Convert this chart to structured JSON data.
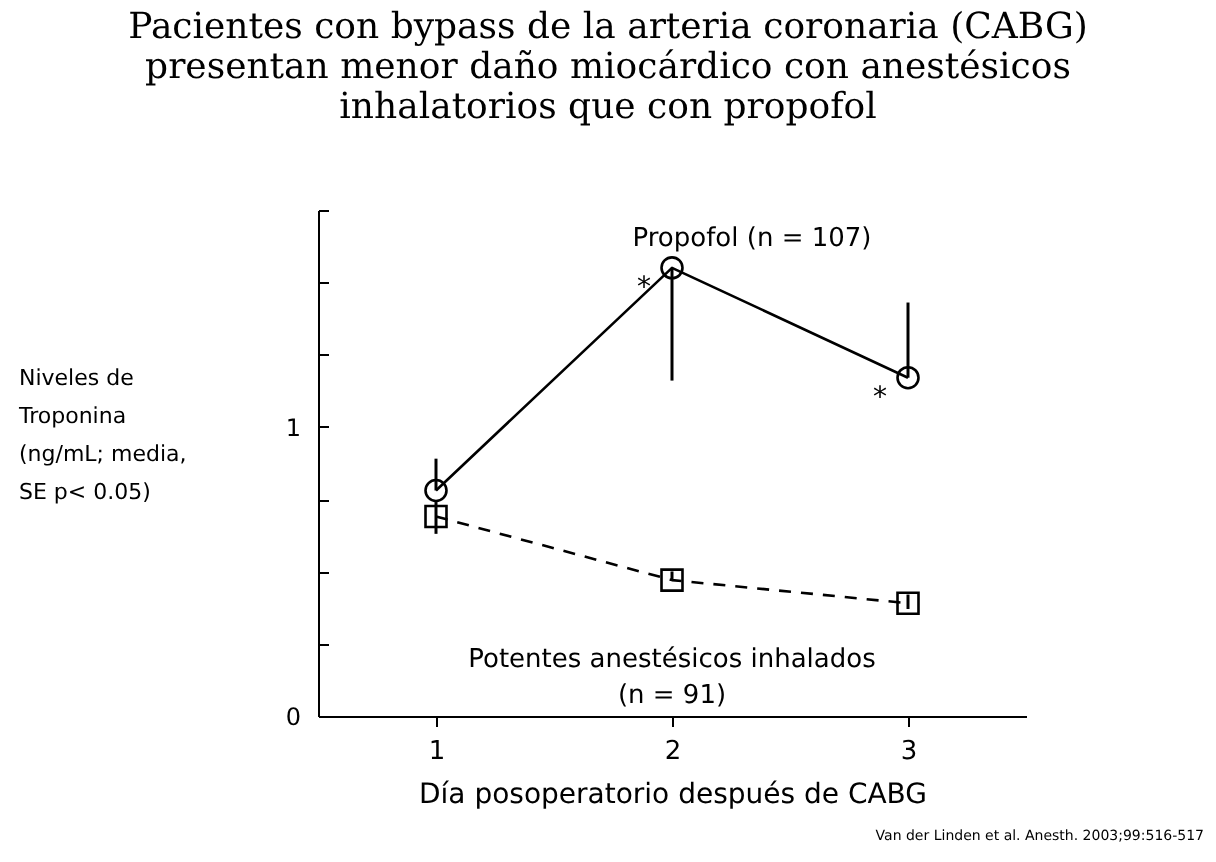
{
  "chart_data": {
    "type": "line",
    "title": "Pacientes con bypass de la arteria coronaria (CABG) presentan menor daño miocárdico con anestésicos inhalatorios que con propofol",
    "xlabel": "Día posoperatorio después de CABG",
    "ylabel": "Niveles de Troponina (ng/mL; media, SE p< 0.05)",
    "x": [
      1,
      2,
      3
    ],
    "xlim": [
      0.5,
      3.5
    ],
    "xticks": [
      1,
      2,
      3
    ],
    "ylim": [
      0,
      1.75
    ],
    "yticks": [
      0,
      {
        "value": 0.25,
        "label": null
      },
      {
        "value": 0.5,
        "label": null
      },
      {
        "value": 0.75,
        "label": null
      },
      1,
      {
        "value": 1.25,
        "label": null
      },
      {
        "value": 1.5,
        "label": null
      },
      {
        "value": 1.75,
        "label": null
      }
    ],
    "series": [
      {
        "name": "Propofol (n = 107)",
        "color": "#000000",
        "marker": "circle",
        "line_style": "solid",
        "values": [
          0.78,
          1.55,
          1.17
        ],
        "errors": [
          [
            0.78,
            0.89
          ],
          [
            1.16,
            1.55
          ],
          [
            1.17,
            1.43
          ]
        ]
      },
      {
        "name": "Potentes anestésicos inhalados (n = 91)",
        "color": "#000000",
        "marker": "square",
        "line_style": "dashed",
        "values": [
          0.69,
          0.47,
          0.39
        ],
        "errors": [
          [
            0.63,
            0.74
          ],
          [
            0.47,
            0.5
          ],
          [
            0.37,
            0.42
          ]
        ]
      }
    ],
    "annotations": [
      {
        "text": "*",
        "x": 2,
        "y": 1.55
      },
      {
        "text": "*",
        "x": 3,
        "y": 1.17
      },
      "Van der Linden et al. Anesth. 2003;99:516-517"
    ],
    "grid": false
  }
}
